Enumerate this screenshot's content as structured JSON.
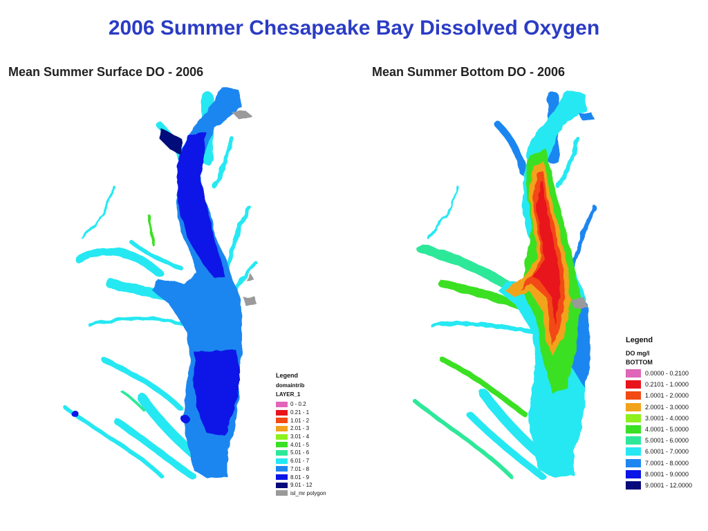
{
  "main_title": "2006 Summer Chesapeake Bay Dissolved Oxygen",
  "surface_map": {
    "title": "Mean Summer Surface DO - 2006",
    "legend": {
      "heading": "Legend",
      "layer": "domaintrib",
      "sublayer": "LAYER_1",
      "classes": [
        {
          "label": "0 - 0.2",
          "color": "#e066b9"
        },
        {
          "label": "0.21 - 1",
          "color": "#e8141c"
        },
        {
          "label": "1.01 - 2",
          "color": "#f24a14"
        },
        {
          "label": "2.01 - 3",
          "color": "#f2a31c"
        },
        {
          "label": "3.01 - 4",
          "color": "#8ef01e"
        },
        {
          "label": "4.01 - 5",
          "color": "#3ae024"
        },
        {
          "label": "5.01 - 6",
          "color": "#2ee89a"
        },
        {
          "label": "6.01 - 7",
          "color": "#27e8f2"
        },
        {
          "label": "7.01 - 8",
          "color": "#1f86f0"
        },
        {
          "label": "8.01 - 9",
          "color": "#0a14e6"
        },
        {
          "label": "9.01 - 12",
          "color": "#060a7a"
        },
        {
          "label": "isl_mr polygon",
          "color": "#9a9a9a"
        }
      ]
    }
  },
  "bottom_map": {
    "title": "Mean Summer Bottom DO - 2006",
    "legend": {
      "heading": "Legend",
      "layer": "DO mg/l",
      "sublayer": "BOTTOM",
      "classes": [
        {
          "label": "0.0000 - 0.2100",
          "color": "#e066b9"
        },
        {
          "label": "0.2101 - 1.0000",
          "color": "#e8141c"
        },
        {
          "label": "1.0001 - 2.0000",
          "color": "#f24a14"
        },
        {
          "label": "2.0001 - 3.0000",
          "color": "#f2a31c"
        },
        {
          "label": "3.0001 - 4.0000",
          "color": "#8ef01e"
        },
        {
          "label": "4.0001 - 5.0000",
          "color": "#3ae024"
        },
        {
          "label": "5.0001 - 6.0000",
          "color": "#2ee89a"
        },
        {
          "label": "6.0001 - 7.0000",
          "color": "#27e8f2"
        },
        {
          "label": "7.0001 - 8.0000",
          "color": "#1f86f0"
        },
        {
          "label": "8.0001 - 9.0000",
          "color": "#0a14e6"
        },
        {
          "label": "9.0001 - 12.0000",
          "color": "#060a7a"
        }
      ]
    }
  }
}
